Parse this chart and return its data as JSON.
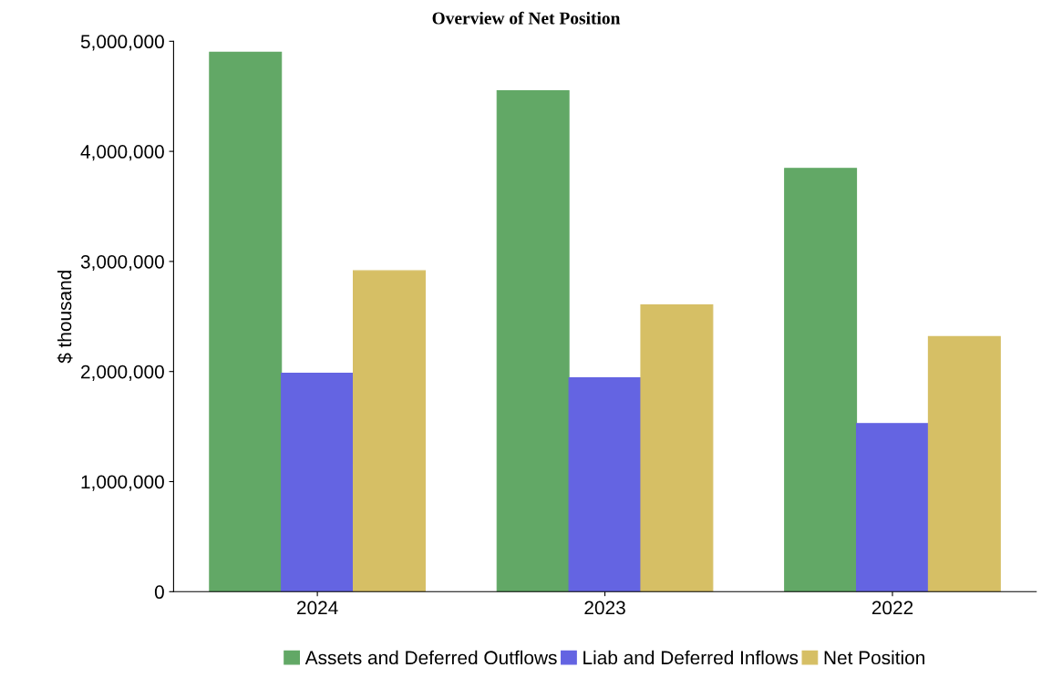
{
  "chart_data": {
    "type": "bar",
    "title": "Overview of Net Position",
    "ylabel": "$ thousand",
    "categories": [
      "2024",
      "2023",
      "2022"
    ],
    "series": [
      {
        "name": "Assets and Deferred Outflows",
        "color": "#62a866",
        "values": [
          4900000,
          4550000,
          3845000
        ]
      },
      {
        "name": "Liab and Deferred Inflows",
        "color": "#6464e2",
        "values": [
          1985000,
          1944000,
          1528000
        ]
      },
      {
        "name": "Net Position",
        "color": "#d6bf65",
        "values": [
          2915000,
          2606000,
          2317000
        ]
      }
    ],
    "ylim": [
      0,
      5000000
    ],
    "yticks": [
      {
        "value": 0,
        "label": "0"
      },
      {
        "value": 1000000,
        "label": "1,000,000"
      },
      {
        "value": 2000000,
        "label": "2,000,000"
      },
      {
        "value": 3000000,
        "label": "3,000,000"
      },
      {
        "value": 4000000,
        "label": "4,000,000"
      },
      {
        "value": 5000000,
        "label": "5,000,000"
      }
    ],
    "legend": "bottom",
    "grid": false
  }
}
